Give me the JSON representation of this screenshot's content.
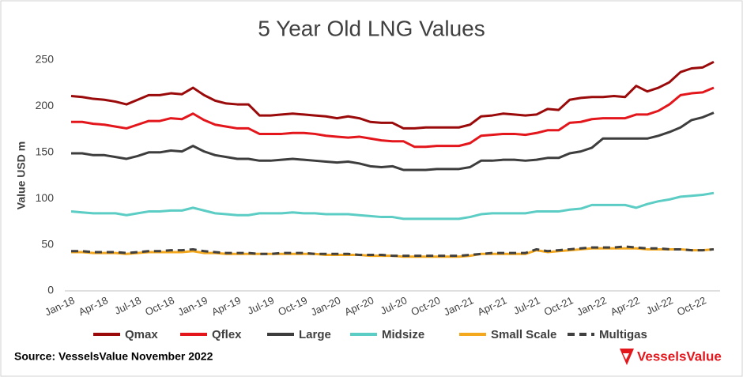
{
  "chart_data": {
    "type": "line",
    "title": "5 Year Old LNG Values",
    "y_label": "Value USD m",
    "categories": [
      "Jan-18",
      null,
      null,
      "Apr-18",
      null,
      null,
      "Jul-18",
      null,
      null,
      "Oct-18",
      null,
      null,
      "Jan-19",
      null,
      null,
      "Apr-19",
      null,
      null,
      "Jul-19",
      null,
      null,
      "Oct-19",
      null,
      null,
      "Jan-20",
      null,
      null,
      "Apr-20",
      null,
      null,
      "Jul-20",
      null,
      null,
      "Oct-20",
      null,
      null,
      "Jan-21",
      null,
      null,
      "Apr-21",
      null,
      null,
      "Jul-21",
      null,
      null,
      "Oct-21",
      null,
      null,
      "Jan-22",
      null,
      null,
      "Apr-22",
      null,
      null,
      "Jul-22",
      null,
      null,
      "Oct-22",
      null
    ],
    "ylim": [
      0,
      250
    ],
    "yticks": [
      0,
      50,
      100,
      150,
      200,
      250
    ],
    "grid": false,
    "legend": "bottom",
    "series": [
      {
        "name": "Qmax",
        "color": "#9b0a0a",
        "line_style": "solid",
        "values": [
          211,
          210,
          208,
          207,
          205,
          202,
          207,
          212,
          212,
          214,
          213,
          220,
          212,
          206,
          203,
          202,
          202,
          190,
          190,
          191,
          192,
          191,
          190,
          189,
          187,
          189,
          187,
          183,
          182,
          182,
          176,
          176,
          177,
          177,
          177,
          177,
          180,
          189,
          190,
          192,
          191,
          190,
          191,
          197,
          196,
          207,
          209,
          210,
          210,
          211,
          210,
          222,
          216,
          220,
          226,
          237,
          241,
          242,
          248
        ]
      },
      {
        "name": "Qflex",
        "color": "#e3161c",
        "line_style": "solid",
        "values": [
          183,
          183,
          181,
          180,
          178,
          176,
          180,
          184,
          184,
          187,
          186,
          192,
          185,
          180,
          178,
          176,
          176,
          170,
          170,
          170,
          171,
          171,
          170,
          168,
          167,
          166,
          167,
          165,
          163,
          162,
          162,
          156,
          156,
          157,
          157,
          157,
          160,
          168,
          169,
          170,
          170,
          169,
          171,
          174,
          174,
          182,
          183,
          186,
          187,
          187,
          187,
          191,
          191,
          195,
          202,
          212,
          214,
          215,
          220
        ]
      },
      {
        "name": "Large",
        "color": "#3d3d3d",
        "line_style": "solid",
        "values": [
          149,
          149,
          147,
          147,
          145,
          143,
          146,
          150,
          150,
          152,
          151,
          157,
          151,
          147,
          145,
          143,
          143,
          141,
          141,
          142,
          143,
          142,
          141,
          140,
          139,
          140,
          138,
          135,
          134,
          135,
          131,
          131,
          131,
          132,
          132,
          132,
          134,
          141,
          141,
          142,
          142,
          141,
          142,
          144,
          144,
          149,
          151,
          155,
          165,
          165,
          165,
          165,
          165,
          168,
          172,
          177,
          185,
          188,
          193
        ]
      },
      {
        "name": "Midsize",
        "color": "#5ccdc4",
        "line_style": "solid",
        "values": [
          86,
          85,
          84,
          84,
          84,
          82,
          84,
          86,
          86,
          87,
          87,
          90,
          87,
          84,
          83,
          82,
          82,
          84,
          84,
          84,
          85,
          84,
          84,
          83,
          83,
          83,
          82,
          81,
          80,
          80,
          78,
          78,
          78,
          78,
          78,
          78,
          80,
          83,
          84,
          84,
          84,
          84,
          86,
          86,
          86,
          88,
          89,
          93,
          93,
          93,
          93,
          90,
          94,
          97,
          99,
          102,
          103,
          104,
          106
        ]
      },
      {
        "name": "Small Scale",
        "color": "#f4a81d",
        "line_style": "solid",
        "values": [
          42,
          42,
          41,
          41,
          41,
          40,
          41,
          42,
          42,
          42,
          42,
          43,
          41,
          41,
          40,
          40,
          40,
          40,
          40,
          40,
          40,
          40,
          40,
          39,
          39,
          39,
          39,
          38,
          38,
          38,
          37,
          37,
          37,
          37,
          37,
          37,
          38,
          40,
          40,
          40,
          40,
          40,
          44,
          42,
          43,
          44,
          45,
          46,
          46,
          46,
          46,
          46,
          45,
          45,
          45,
          45,
          44,
          44,
          45
        ]
      },
      {
        "name": "Multigas",
        "color": "#404040",
        "line_style": "dashed",
        "values": [
          43,
          43,
          42,
          42,
          42,
          41,
          42,
          43,
          43,
          44,
          44,
          45,
          43,
          42,
          41,
          41,
          41,
          40,
          40,
          41,
          41,
          41,
          40,
          40,
          40,
          40,
          39,
          39,
          39,
          38,
          38,
          38,
          38,
          38,
          38,
          38,
          39,
          40,
          41,
          41,
          41,
          41,
          45,
          43,
          44,
          45,
          46,
          47,
          47,
          47,
          48,
          47,
          46,
          46,
          45,
          45,
          44,
          44,
          45
        ]
      }
    ]
  },
  "footer": {
    "source": "Source: VesselsValue November 2022",
    "logo": "VesselsValue"
  }
}
